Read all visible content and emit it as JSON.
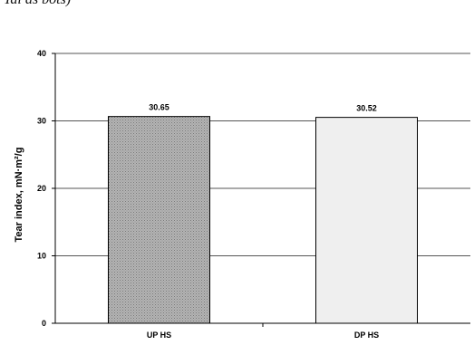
{
  "page": {
    "caption_fragment": "Tal as bots)"
  },
  "chart_data": {
    "type": "bar",
    "title": "",
    "ylabel": "Tear index, mN·m²/g",
    "xlabel": "",
    "categories": [
      "UP HS",
      "DP HS"
    ],
    "values": [
      30.65,
      30.52
    ],
    "data_labels": [
      "30.65",
      "30.52"
    ],
    "ylim": [
      0,
      40
    ],
    "yticks": [
      0,
      10,
      20,
      30,
      40
    ],
    "grid": true,
    "bar_colors": [
      "#a8a8a8",
      "#efefef"
    ],
    "bar_patterns": [
      "dotted-gray",
      "light"
    ]
  }
}
